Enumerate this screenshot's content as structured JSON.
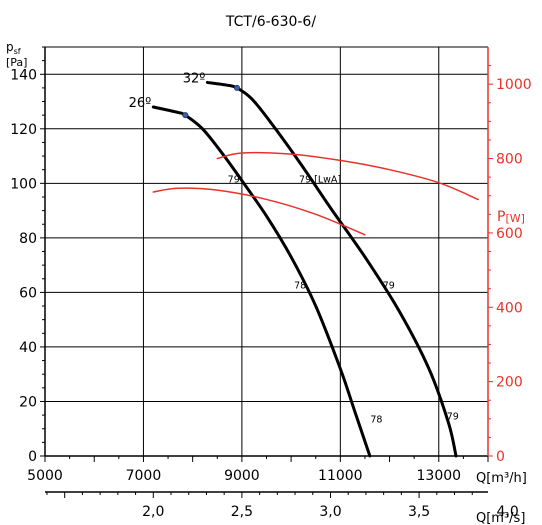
{
  "chart_data": {
    "type": "line",
    "title": "TCT/6-630-6/",
    "ylabel_main": "p",
    "ylabel_sub": "sf",
    "yunit": "[Pa]",
    "ylim": [
      0,
      150
    ],
    "yticks": [
      0,
      20,
      40,
      60,
      80,
      100,
      120,
      140
    ],
    "ytick_labels": [
      "0",
      "20",
      "40",
      "60",
      "80",
      "100",
      "120",
      "140"
    ],
    "xlim": [
      5000,
      14000
    ],
    "xticks": [
      5000,
      7000,
      9000,
      11000,
      13000
    ],
    "xtick_labels": [
      "5000",
      "7000",
      "9000",
      "11000",
      "13000"
    ],
    "xlabel": "Q[m³/h]",
    "x2ticks": [
      2.0,
      2.5,
      3.0,
      3.5,
      4.0
    ],
    "x2tick_labels": [
      "2,0",
      "2,5",
      "3,0",
      "3,5",
      "4,0"
    ],
    "x2label": "Q[m³/s]",
    "y2label_main": "P",
    "y2label_sub": "[W]",
    "y2lim": [
      0,
      1100
    ],
    "y2ticks": [
      0,
      200,
      400,
      600,
      800,
      1000
    ],
    "y2tick_labels": [
      "0",
      "200",
      "400",
      "600",
      "800",
      "1000"
    ],
    "grid": true,
    "colors": {
      "pressure": "#000000",
      "power": "#e8322a",
      "marker": "#3b5fa8",
      "axis_right": "#e8322a"
    },
    "series": [
      {
        "name": "26º",
        "axis": "left",
        "color": "#000000",
        "x": [
          7200,
          7700,
          7850,
          8200,
          8600,
          9000,
          9500,
          10000,
          10500,
          11000,
          11300,
          11600
        ],
        "y": [
          128,
          126,
          125,
          120,
          111,
          101,
          88,
          73,
          55,
          32,
          16,
          0
        ]
      },
      {
        "name": "32º",
        "axis": "left",
        "color": "#000000",
        "x": [
          8300,
          8700,
          8900,
          9200,
          9600,
          10200,
          10800,
          11500,
          12200,
          12800,
          13200,
          13350
        ],
        "y": [
          137,
          136,
          135,
          131,
          122,
          107,
          91,
          73,
          53,
          32,
          12,
          0
        ]
      },
      {
        "name": "",
        "axis": "right",
        "color": "#e8322a",
        "x": [
          7200,
          7700,
          8500,
          9500,
          10500,
          11500
        ],
        "y": [
          710,
          720,
          715,
          690,
          650,
          595
        ]
      },
      {
        "name": "",
        "axis": "right",
        "color": "#e8322a",
        "x": [
          8500,
          9000,
          10000,
          11000,
          12000,
          13000,
          13800
        ],
        "y": [
          800,
          815,
          812,
          795,
          770,
          735,
          690
        ]
      }
    ],
    "markers": [
      {
        "x": 7850,
        "y": 125
      },
      {
        "x": 8900,
        "y": 135
      }
    ],
    "annotations": [
      {
        "text": "26º",
        "x": 7200,
        "y": 128,
        "size": "big"
      },
      {
        "text": "32º",
        "x": 8300,
        "y": 137,
        "size": "big"
      },
      {
        "text": "79",
        "x": 8650,
        "y": 100,
        "size": "small"
      },
      {
        "text": "79 [LwA]",
        "x": 10100,
        "y": 100,
        "size": "small"
      },
      {
        "text": "78",
        "x": 10000,
        "y": 61,
        "size": "small"
      },
      {
        "text": "79",
        "x": 11800,
        "y": 61,
        "size": "small"
      },
      {
        "text": "78",
        "x": 11550,
        "y": 12,
        "size": "small"
      },
      {
        "text": "79",
        "x": 13100,
        "y": 13,
        "size": "small"
      }
    ]
  }
}
